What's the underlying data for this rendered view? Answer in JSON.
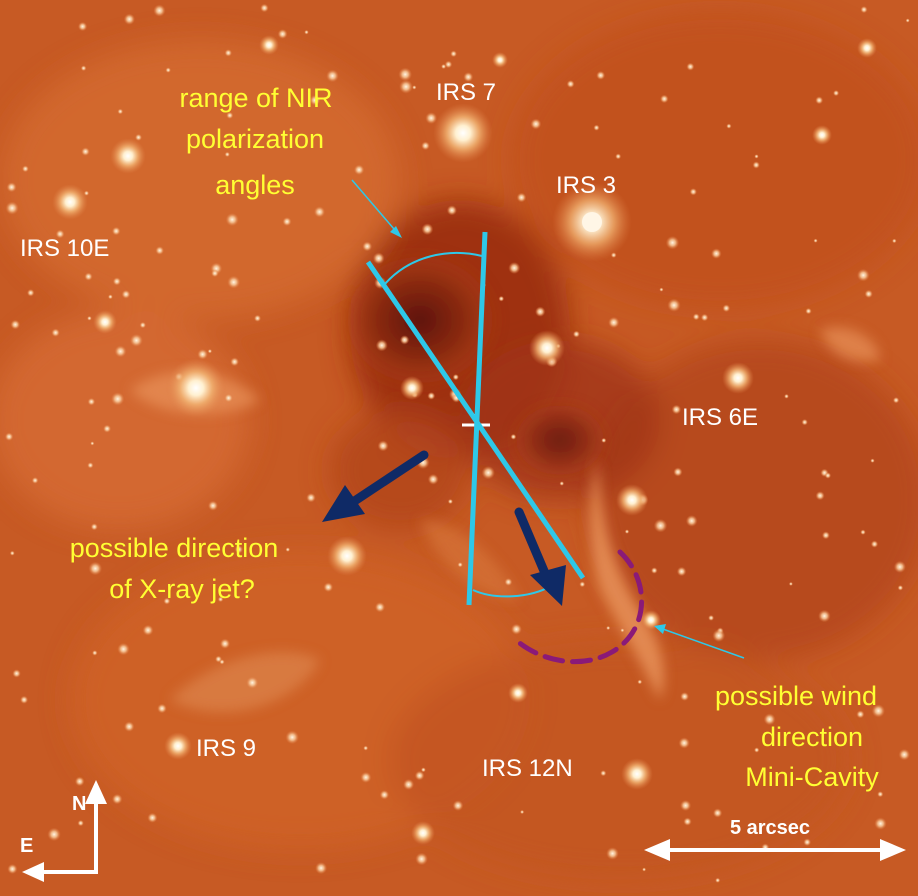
{
  "colors": {
    "background_field": "#c8551f",
    "dark_nebula": "#7a1a0e",
    "bright_gas": "#e8915a",
    "star_core": "#fff4e0",
    "annotation_line": "#2ec8e8",
    "arrow": "#0f2a66",
    "cavity_arc": "#8a1a78",
    "label_yellow": "#ffff33",
    "label_white": "#ffffff"
  },
  "labels": {
    "irs7": "IRS 7",
    "irs3": "IRS 3",
    "irs10e": "IRS 10E",
    "irs6e": "IRS 6E",
    "irs9": "IRS 9",
    "irs12n": "IRS 12N"
  },
  "annotations": {
    "polarization": [
      "range of NIR",
      "polarization",
      "angles"
    ],
    "jet": [
      "possible direction",
      "of X-ray jet?"
    ],
    "wind": [
      "possible wind",
      "direction",
      "Mini-Cavity"
    ]
  },
  "compass": {
    "north": "N",
    "east": "E"
  },
  "scale_bar": {
    "label": "5 arcsec"
  }
}
